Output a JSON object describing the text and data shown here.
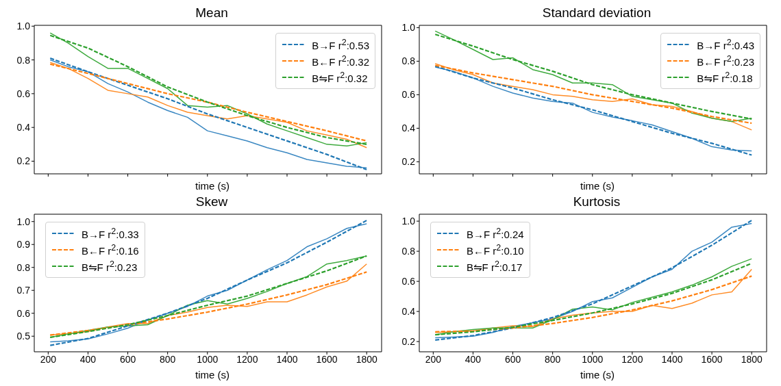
{
  "chart_data": [
    {
      "type": "line",
      "title": "Mean",
      "xlabel": "time (s)",
      "xlim": [
        130,
        1875
      ],
      "xticks": [
        200,
        400,
        600,
        800,
        1000,
        1200,
        1400,
        1600,
        1800
      ],
      "ylim": [
        0.125,
        1.005
      ],
      "yticks": [
        {
          "value": 0.2,
          "label": "0.2"
        },
        {
          "value": 0.4,
          "label": "0.4"
        },
        {
          "value": 0.6,
          "label": "0.6"
        },
        {
          "value": 0.8,
          "label": "0.8"
        },
        {
          "value": 1.0,
          "label": "1.0"
        }
      ],
      "tick_labels": "y",
      "legend": "top right",
      "series": [
        {
          "color": "#3b88c2",
          "x": [
            210,
            300,
            400,
            500,
            600,
            700,
            800,
            900,
            1000,
            1100,
            1200,
            1300,
            1400,
            1500,
            1600,
            1700,
            1800
          ],
          "values": [
            0.8,
            0.76,
            0.73,
            0.66,
            0.61,
            0.55,
            0.5,
            0.46,
            0.38,
            0.35,
            0.32,
            0.28,
            0.25,
            0.21,
            0.19,
            0.17,
            0.16
          ]
        },
        {
          "color": "#ff8c26",
          "x": [
            210,
            300,
            400,
            500,
            600,
            700,
            800,
            900,
            1000,
            1100,
            1200,
            1300,
            1400,
            1500,
            1600,
            1700,
            1800
          ],
          "values": [
            0.785,
            0.75,
            0.69,
            0.62,
            0.6,
            0.58,
            0.53,
            0.49,
            0.47,
            0.45,
            0.47,
            0.45,
            0.43,
            0.38,
            0.355,
            0.33,
            0.28
          ]
        },
        {
          "color": "#3eaa3e",
          "x": [
            210,
            300,
            400,
            500,
            600,
            700,
            800,
            900,
            1000,
            1100,
            1200,
            1300,
            1400,
            1500,
            1600,
            1700,
            1800
          ],
          "values": [
            0.96,
            0.9,
            0.82,
            0.75,
            0.75,
            0.69,
            0.63,
            0.53,
            0.52,
            0.53,
            0.48,
            0.42,
            0.38,
            0.34,
            0.3,
            0.29,
            0.31
          ]
        },
        {
          "name": "B→F r$^{2}$:0.53",
          "color": "#1f77b4",
          "line_style": "dashed",
          "x": [
            210,
            400,
            600,
            800,
            1000,
            1200,
            1400,
            1600,
            1800
          ],
          "values": [
            0.81,
            0.73,
            0.65,
            0.57,
            0.48,
            0.4,
            0.32,
            0.24,
            0.15
          ]
        },
        {
          "name": "B←F r$^{2}$:0.32",
          "color": "#ff7f0e",
          "line_style": "dashed",
          "x": [
            210,
            400,
            600,
            800,
            1000,
            1200,
            1400,
            1600,
            1800
          ],
          "values": [
            0.775,
            0.72,
            0.66,
            0.6,
            0.55,
            0.49,
            0.435,
            0.38,
            0.32
          ]
        },
        {
          "name": "B⇋F r$^{2}$:0.32",
          "color": "#2ca02c",
          "line_style": "dashed",
          "x": [
            210,
            400,
            600,
            800,
            1000,
            1200,
            1400,
            1600,
            1800
          ],
          "values": [
            0.945,
            0.87,
            0.76,
            0.64,
            0.55,
            0.47,
            0.4,
            0.34,
            0.3
          ]
        }
      ]
    },
    {
      "type": "line",
      "title": "Standard deviation",
      "xlabel": "time (s)",
      "xlim": [
        130,
        1875
      ],
      "xticks": [
        200,
        400,
        600,
        800,
        1000,
        1200,
        1400,
        1600,
        1800
      ],
      "ylim": [
        0.128,
        1.014
      ],
      "yticks": [
        {
          "value": 0.2,
          "label": "0.2"
        },
        {
          "value": 0.4,
          "label": "0.4"
        },
        {
          "value": 0.6,
          "label": "0.6"
        },
        {
          "value": 0.8,
          "label": "0.8"
        },
        {
          "value": 1.0,
          "label": "1.0"
        }
      ],
      "tick_labels": "y",
      "legend": "top right",
      "series": [
        {
          "color": "#3b88c2",
          "x": [
            210,
            300,
            400,
            500,
            600,
            700,
            800,
            900,
            1000,
            1100,
            1200,
            1300,
            1400,
            1500,
            1600,
            1700,
            1800
          ],
          "values": [
            0.765,
            0.74,
            0.7,
            0.65,
            0.61,
            0.58,
            0.56,
            0.55,
            0.495,
            0.467,
            0.445,
            0.42,
            0.38,
            0.34,
            0.29,
            0.27,
            0.265
          ]
        },
        {
          "color": "#ff8c26",
          "x": [
            210,
            300,
            400,
            500,
            600,
            700,
            800,
            900,
            1000,
            1100,
            1200,
            1300,
            1400,
            1500,
            1600,
            1700,
            1800
          ],
          "values": [
            0.785,
            0.75,
            0.72,
            0.67,
            0.65,
            0.63,
            0.6,
            0.59,
            0.57,
            0.56,
            0.575,
            0.54,
            0.53,
            0.5,
            0.46,
            0.44,
            0.39
          ]
        },
        {
          "color": "#3eaa3e",
          "x": [
            210,
            300,
            400,
            500,
            600,
            700,
            800,
            900,
            1000,
            1100,
            1200,
            1300,
            1400,
            1500,
            1600,
            1700,
            1800
          ],
          "values": [
            0.98,
            0.93,
            0.87,
            0.81,
            0.82,
            0.75,
            0.72,
            0.67,
            0.67,
            0.66,
            0.59,
            0.57,
            0.55,
            0.49,
            0.46,
            0.44,
            0.46
          ]
        },
        {
          "name": "B→F r$^{2}$:0.43",
          "color": "#1f77b4",
          "line_style": "dashed",
          "x": [
            210,
            400,
            600,
            800,
            1000,
            1200,
            1400,
            1600,
            1800
          ],
          "values": [
            0.77,
            0.7,
            0.64,
            0.57,
            0.51,
            0.44,
            0.37,
            0.31,
            0.24
          ]
        },
        {
          "name": "B←F r$^{2}$:0.23",
          "color": "#ff7f0e",
          "line_style": "dashed",
          "x": [
            210,
            400,
            600,
            800,
            1000,
            1200,
            1400,
            1600,
            1800
          ],
          "values": [
            0.775,
            0.73,
            0.69,
            0.65,
            0.6,
            0.56,
            0.52,
            0.47,
            0.43
          ]
        },
        {
          "name": "B⇋F r$^{2}$:0.18",
          "color": "#2ca02c",
          "line_style": "dashed",
          "x": [
            210,
            400,
            600,
            800,
            1000,
            1200,
            1400,
            1600,
            1800
          ],
          "values": [
            0.96,
            0.89,
            0.81,
            0.74,
            0.66,
            0.6,
            0.55,
            0.5,
            0.455
          ]
        }
      ]
    },
    {
      "type": "line",
      "title": "Skew",
      "xlabel": "time (s)",
      "xlim": [
        130,
        1875
      ],
      "xticks": [
        200,
        400,
        600,
        800,
        1000,
        1200,
        1400,
        1600,
        1800
      ],
      "ylim": [
        0.432,
        1.032
      ],
      "yticks": [
        {
          "value": 0.5,
          "label": "0.5"
        },
        {
          "value": 0.6,
          "label": "0.6"
        },
        {
          "value": 0.7,
          "label": "0.7"
        },
        {
          "value": 0.8,
          "label": "0.8"
        },
        {
          "value": 0.9,
          "label": "0.9"
        },
        {
          "value": 1.0,
          "label": "1.0"
        }
      ],
      "legend": "top left",
      "series": [
        {
          "color": "#3b88c2",
          "x": [
            210,
            300,
            400,
            500,
            600,
            700,
            800,
            900,
            1000,
            1100,
            1200,
            1300,
            1400,
            1500,
            1600,
            1700,
            1800
          ],
          "values": [
            0.475,
            0.48,
            0.488,
            0.51,
            0.535,
            0.57,
            0.6,
            0.63,
            0.675,
            0.7,
            0.745,
            0.79,
            0.83,
            0.89,
            0.925,
            0.97,
            0.99
          ]
        },
        {
          "color": "#ff8c26",
          "x": [
            210,
            300,
            400,
            500,
            600,
            700,
            800,
            900,
            1000,
            1100,
            1200,
            1300,
            1400,
            1500,
            1600,
            1700,
            1800
          ],
          "values": [
            0.505,
            0.51,
            0.52,
            0.54,
            0.555,
            0.555,
            0.59,
            0.605,
            0.625,
            0.635,
            0.63,
            0.65,
            0.65,
            0.68,
            0.715,
            0.74,
            0.815
          ]
        },
        {
          "color": "#3eaa3e",
          "x": [
            210,
            300,
            400,
            500,
            600,
            700,
            800,
            900,
            1000,
            1100,
            1200,
            1300,
            1400,
            1500,
            1600,
            1700,
            1800
          ],
          "values": [
            0.495,
            0.51,
            0.525,
            0.54,
            0.545,
            0.55,
            0.59,
            0.635,
            0.655,
            0.64,
            0.665,
            0.695,
            0.73,
            0.76,
            0.815,
            0.83,
            0.85
          ]
        },
        {
          "name": "B→F r$^{2}$:0.33",
          "color": "#1f77b4",
          "line_style": "dashed",
          "x": [
            210,
            400,
            600,
            800,
            1000,
            1200,
            1400,
            1600,
            1800
          ],
          "values": [
            0.46,
            0.49,
            0.545,
            0.6,
            0.665,
            0.745,
            0.82,
            0.91,
            1.005
          ]
        },
        {
          "name": "B←F r$^{2}$:0.16",
          "color": "#ff7f0e",
          "line_style": "dashed",
          "x": [
            210,
            400,
            600,
            800,
            1000,
            1200,
            1400,
            1600,
            1800
          ],
          "values": [
            0.505,
            0.525,
            0.55,
            0.575,
            0.605,
            0.64,
            0.68,
            0.725,
            0.78
          ]
        },
        {
          "name": "B⇋F r$^{2}$:0.23",
          "color": "#2ca02c",
          "line_style": "dashed",
          "x": [
            210,
            400,
            600,
            800,
            1000,
            1200,
            1400,
            1600,
            1800
          ],
          "values": [
            0.495,
            0.52,
            0.55,
            0.59,
            0.635,
            0.675,
            0.73,
            0.785,
            0.85
          ]
        }
      ]
    },
    {
      "type": "line",
      "title": "Kurtosis",
      "xlabel": "time (s)",
      "xlim": [
        130,
        1875
      ],
      "xticks": [
        200,
        400,
        600,
        800,
        1000,
        1200,
        1400,
        1600,
        1800
      ],
      "ylim": [
        0.132,
        1.046
      ],
      "yticks": [
        {
          "value": 0.2,
          "label": "0.2"
        },
        {
          "value": 0.4,
          "label": "0.4"
        },
        {
          "value": 0.6,
          "label": "0.6"
        },
        {
          "value": 0.8,
          "label": "0.8"
        },
        {
          "value": 1.0,
          "label": "1.0"
        }
      ],
      "legend": "top left",
      "series": [
        {
          "color": "#3b88c2",
          "x": [
            210,
            300,
            400,
            500,
            600,
            700,
            800,
            900,
            1000,
            1100,
            1200,
            1300,
            1400,
            1500,
            1600,
            1700,
            1800
          ],
          "values": [
            0.225,
            0.23,
            0.235,
            0.26,
            0.3,
            0.325,
            0.35,
            0.4,
            0.465,
            0.49,
            0.56,
            0.63,
            0.68,
            0.8,
            0.86,
            0.96,
            0.985
          ]
        },
        {
          "color": "#ff8c26",
          "x": [
            210,
            300,
            400,
            500,
            600,
            700,
            800,
            900,
            1000,
            1100,
            1200,
            1300,
            1400,
            1500,
            1600,
            1700,
            1800
          ],
          "values": [
            0.26,
            0.265,
            0.27,
            0.29,
            0.305,
            0.3,
            0.35,
            0.375,
            0.39,
            0.4,
            0.4,
            0.44,
            0.42,
            0.455,
            0.51,
            0.53,
            0.68
          ]
        },
        {
          "color": "#3eaa3e",
          "x": [
            210,
            300,
            400,
            500,
            600,
            700,
            800,
            900,
            1000,
            1100,
            1200,
            1300,
            1400,
            1500,
            1600,
            1700,
            1800
          ],
          "values": [
            0.245,
            0.265,
            0.28,
            0.29,
            0.29,
            0.29,
            0.345,
            0.415,
            0.43,
            0.41,
            0.46,
            0.495,
            0.53,
            0.575,
            0.63,
            0.7,
            0.75
          ]
        },
        {
          "name": "B→F r$^{2}$:0.24",
          "color": "#1f77b4",
          "line_style": "dashed",
          "x": [
            210,
            400,
            600,
            800,
            1000,
            1200,
            1400,
            1600,
            1800
          ],
          "values": [
            0.21,
            0.24,
            0.29,
            0.36,
            0.45,
            0.57,
            0.69,
            0.84,
            1.005
          ]
        },
        {
          "name": "B←F r$^{2}$:0.10",
          "color": "#ff7f0e",
          "line_style": "dashed",
          "x": [
            210,
            400,
            600,
            800,
            1000,
            1200,
            1400,
            1600,
            1800
          ],
          "values": [
            0.265,
            0.27,
            0.29,
            0.32,
            0.36,
            0.41,
            0.47,
            0.545,
            0.635
          ]
        },
        {
          "name": "B⇋F r$^{2}$:0.17",
          "color": "#2ca02c",
          "line_style": "dashed",
          "x": [
            210,
            400,
            600,
            800,
            1000,
            1200,
            1400,
            1600,
            1800
          ],
          "values": [
            0.245,
            0.265,
            0.295,
            0.34,
            0.39,
            0.45,
            0.52,
            0.61,
            0.72
          ]
        }
      ]
    }
  ]
}
